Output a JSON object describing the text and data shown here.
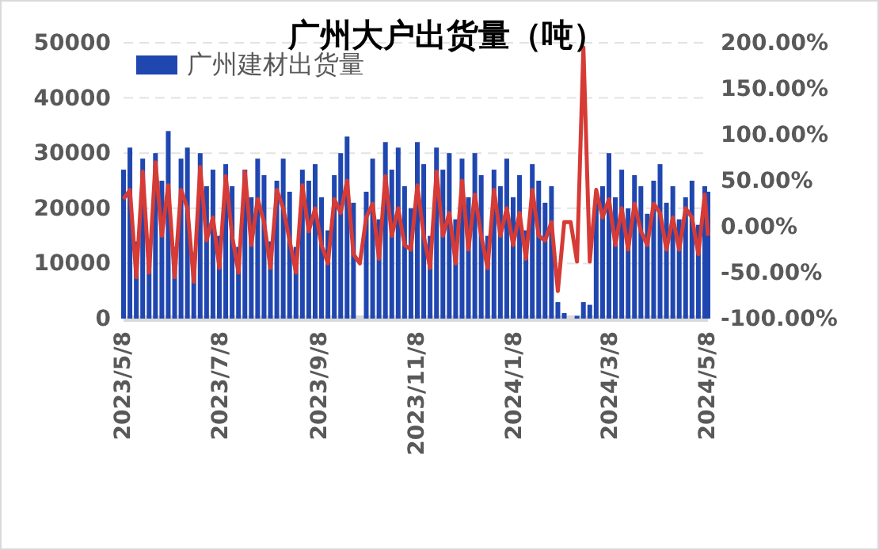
{
  "chart_data": {
    "type": "bar",
    "title": "广州大户出货量（吨）",
    "x": [
      "2023-05-08",
      "2023-05-12",
      "2023-05-16",
      "2023-05-20",
      "2023-05-24",
      "2023-05-28",
      "2023-06-01",
      "2023-06-05",
      "2023-06-09",
      "2023-06-13",
      "2023-06-17",
      "2023-06-21",
      "2023-06-25",
      "2023-06-29",
      "2023-07-03",
      "2023-07-07",
      "2023-07-11",
      "2023-07-15",
      "2023-07-19",
      "2023-07-23",
      "2023-07-27",
      "2023-07-31",
      "2023-08-04",
      "2023-08-08",
      "2023-08-12",
      "2023-08-16",
      "2023-08-20",
      "2023-08-24",
      "2023-08-28",
      "2023-09-01",
      "2023-09-05",
      "2023-09-09",
      "2023-09-13",
      "2023-09-17",
      "2023-09-21",
      "2023-09-25",
      "2023-09-29",
      "2023-10-03",
      "2023-10-07",
      "2023-10-11",
      "2023-10-15",
      "2023-10-19",
      "2023-10-23",
      "2023-10-27",
      "2023-10-31",
      "2023-11-04",
      "2023-11-08",
      "2023-11-12",
      "2023-11-16",
      "2023-11-20",
      "2023-11-24",
      "2023-11-28",
      "2023-12-02",
      "2023-12-06",
      "2023-12-10",
      "2023-12-14",
      "2023-12-18",
      "2023-12-22",
      "2023-12-26",
      "2023-12-30",
      "2024-01-03",
      "2024-01-07",
      "2024-01-11",
      "2024-01-15",
      "2024-01-19",
      "2024-01-23",
      "2024-01-27",
      "2024-01-31",
      "2024-02-04",
      "2024-02-08",
      "2024-02-12",
      "2024-02-16",
      "2024-02-20",
      "2024-02-24",
      "2024-02-28",
      "2024-03-03",
      "2024-03-07",
      "2024-03-11",
      "2024-03-15",
      "2024-03-19",
      "2024-03-23",
      "2024-03-27",
      "2024-03-31",
      "2024-04-04",
      "2024-04-08",
      "2024-04-12",
      "2024-04-16",
      "2024-04-20",
      "2024-04-24",
      "2024-04-28",
      "2024-05-02",
      "2024-05-06",
      "2024-05-08"
    ],
    "series": [
      {
        "name": "广州建材出货量",
        "color": "#2047b0",
        "values": [
          27000,
          31000,
          14000,
          29000,
          12000,
          30000,
          25000,
          34000,
          13000,
          29000,
          31000,
          12000,
          30000,
          24000,
          27000,
          15000,
          28000,
          24000,
          13000,
          27000,
          22000,
          29000,
          26000,
          14000,
          25000,
          29000,
          23000,
          13000,
          27000,
          25000,
          28000,
          22000,
          16000,
          26000,
          30000,
          33000,
          21000,
          null,
          23000,
          29000,
          18000,
          32000,
          27000,
          31000,
          24000,
          20000,
          32000,
          28000,
          15000,
          31000,
          27000,
          30000,
          18000,
          29000,
          22000,
          30000,
          26000,
          15000,
          27000,
          24000,
          29000,
          22000,
          26000,
          16000,
          28000,
          25000,
          21000,
          24000,
          3000,
          1000,
          null,
          500,
          3000,
          2500,
          21000,
          24000,
          30000,
          22000,
          27000,
          20000,
          26000,
          24000,
          19000,
          25000,
          28000,
          21000,
          24000,
          18000,
          22000,
          25000,
          17000,
          24000,
          23000
        ]
      },
      {
        "type": "line",
        "axis": "y2",
        "color": "#d63b36",
        "values": [
          30,
          40,
          -55,
          60,
          -50,
          70,
          -10,
          45,
          -55,
          40,
          20,
          -60,
          65,
          -15,
          10,
          -45,
          55,
          -10,
          -50,
          60,
          -20,
          30,
          5,
          -45,
          40,
          20,
          -15,
          -50,
          45,
          -5,
          20,
          -20,
          -40,
          30,
          15,
          50,
          -30,
          -40,
          10,
          25,
          -35,
          55,
          -10,
          20,
          -20,
          -25,
          45,
          -10,
          -45,
          60,
          -10,
          15,
          -40,
          50,
          -25,
          35,
          -10,
          -45,
          40,
          -10,
          20,
          -20,
          15,
          -35,
          40,
          -10,
          -15,
          5,
          -70,
          5,
          5,
          -38,
          195,
          -38,
          40,
          10,
          30,
          -20,
          20,
          -25,
          25,
          -5,
          -20,
          25,
          15,
          -25,
          10,
          -25,
          20,
          10,
          -30,
          35,
          -10
        ]
      }
    ],
    "xlim": [
      "2023-05-08",
      "2024-05-08"
    ],
    "xticks": [
      {
        "value": "2023-05-08",
        "label": "2023/5/8"
      },
      {
        "value": "2023-07-08",
        "label": "2023/7/8"
      },
      {
        "value": "2023-09-08",
        "label": "2023/9/8"
      },
      {
        "value": "2023-11-08",
        "label": "2023/11/8"
      },
      {
        "value": "2024-01-08",
        "label": "2024/1/8"
      },
      {
        "value": "2024-03-08",
        "label": "2024/3/8"
      },
      {
        "value": "2024-05-08",
        "label": "2024/5/8"
      }
    ],
    "ylim": [
      0,
      50000
    ],
    "yticks": [
      0,
      10000,
      20000,
      30000,
      40000,
      50000
    ],
    "y2lim": [
      -100,
      200
    ],
    "y2ticks": [
      {
        "value": -100,
        "label": "-100.00%"
      },
      {
        "value": -50,
        "label": "-50.00%"
      },
      {
        "value": 0,
        "label": "0.00%"
      },
      {
        "value": 50,
        "label": "50.00%"
      },
      {
        "value": 100,
        "label": "100.00%"
      },
      {
        "value": 150,
        "label": "150.00%"
      },
      {
        "value": 200,
        "label": "200.00%"
      }
    ],
    "grid": "y",
    "legend": "top left",
    "line_style": "solid",
    "marker": "none"
  }
}
